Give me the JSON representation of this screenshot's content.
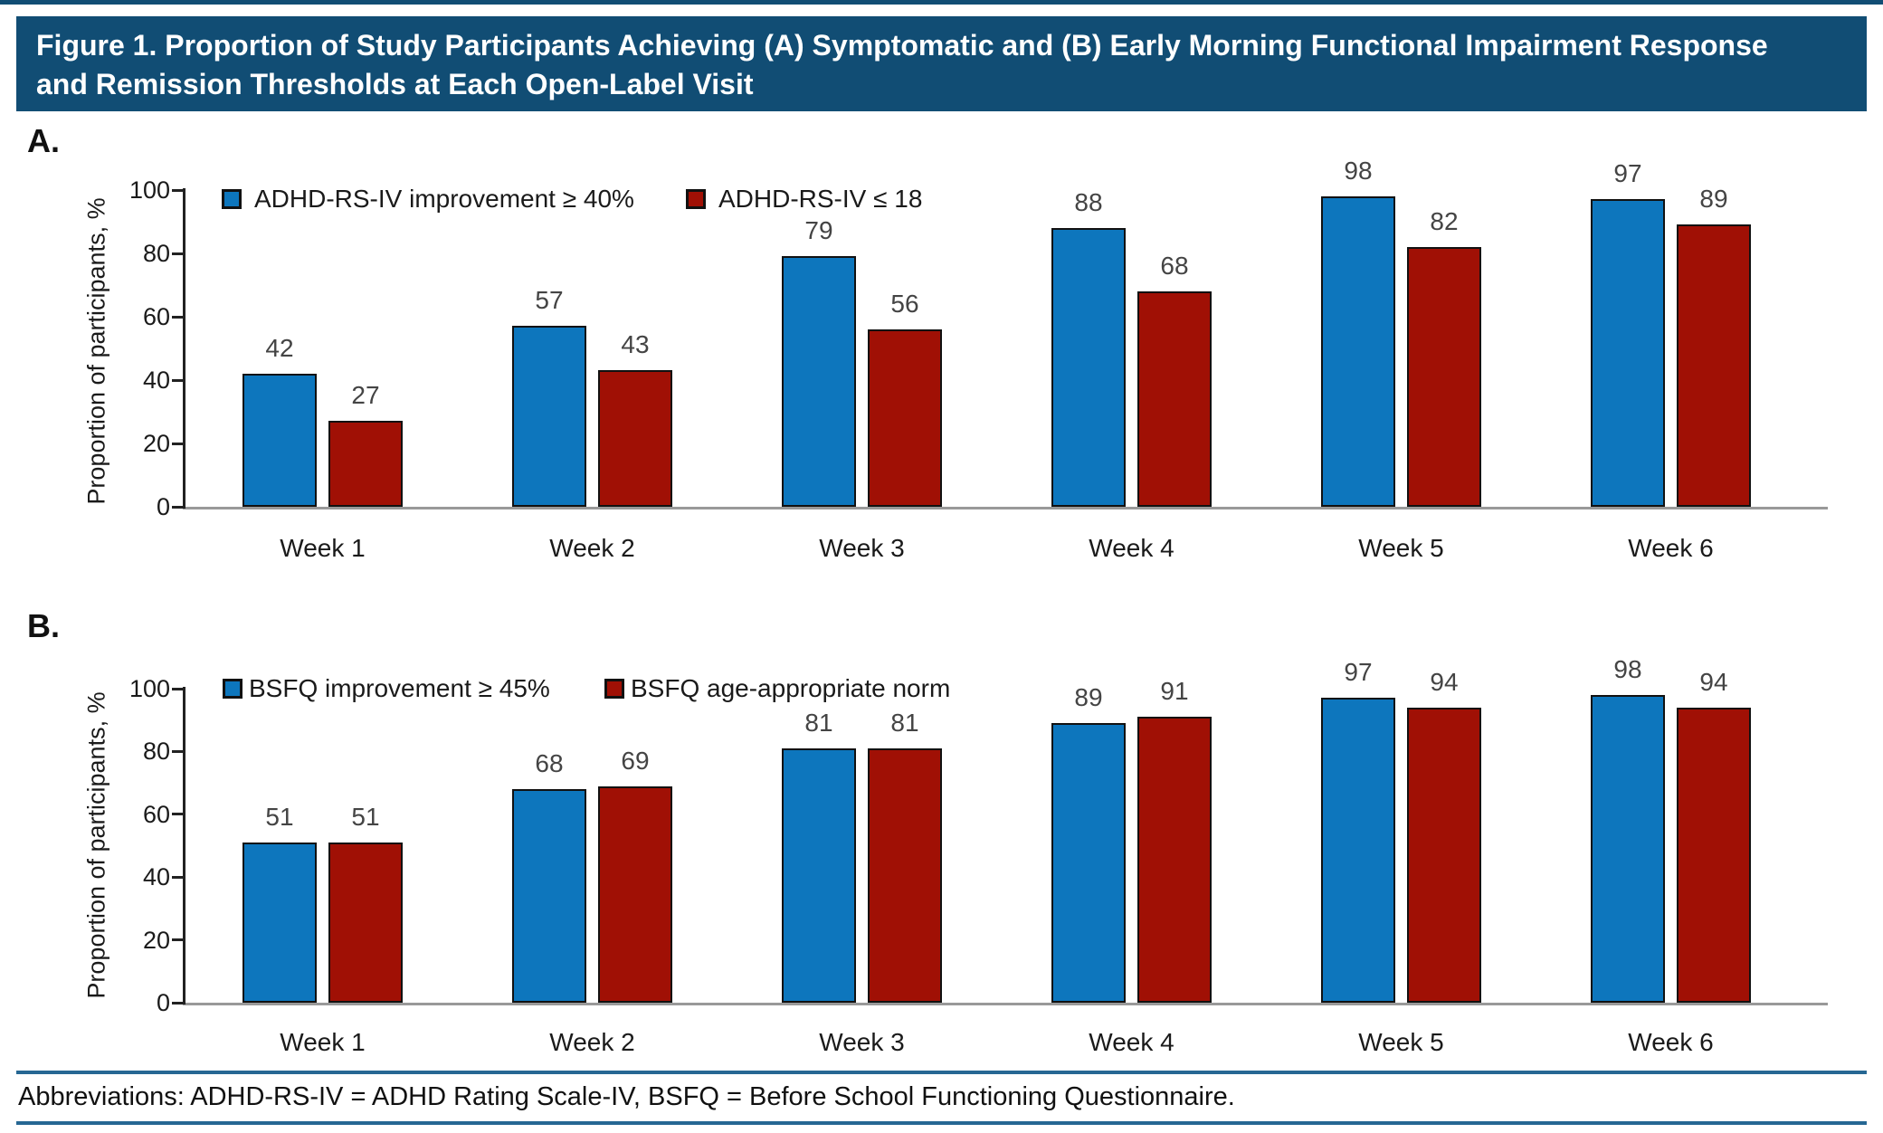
{
  "header": {
    "title_line1": "Figure 1. Proportion of Study Participants Achieving (A) Symptomatic and (B) Early Morning Functional Impairment Response",
    "title_line2": "and Remission Thresholds at Each Open-Label Visit"
  },
  "colors": {
    "header_bg": "#114d74",
    "top_rule": "#114d74",
    "footer_rule": "#266793",
    "series_blue": "#0d76bd",
    "series_red": "#a01005",
    "bar_border": "#111111",
    "value_label": "#444444"
  },
  "chart_data": [
    {
      "type": "bar",
      "panel": "A.",
      "ylabel": "Proportion of participants, %",
      "ylim": [
        0,
        100
      ],
      "yticks": [
        0,
        20,
        40,
        60,
        80,
        100
      ],
      "legend_position": "top",
      "grid": false,
      "categories": [
        "Week 1",
        "Week 2",
        "Week 3",
        "Week 4",
        "Week 5",
        "Week 6"
      ],
      "series": [
        {
          "name": "ADHD-RS-IV improvement ≥ 40%",
          "color": "#0d76bd",
          "values": [
            42,
            57,
            79,
            88,
            98,
            97
          ]
        },
        {
          "name": "ADHD-RS-IV ≤ 18",
          "color": "#a01005",
          "values": [
            27,
            43,
            56,
            68,
            82,
            89
          ]
        }
      ]
    },
    {
      "type": "bar",
      "panel": "B.",
      "ylabel": "Proportion of participants, %",
      "ylim": [
        0,
        100
      ],
      "yticks": [
        0,
        20,
        40,
        60,
        80,
        100
      ],
      "legend_position": "top",
      "grid": false,
      "categories": [
        "Week 1",
        "Week 2",
        "Week 3",
        "Week 4",
        "Week 5",
        "Week 6"
      ],
      "series": [
        {
          "name": "BSFQ improvement ≥ 45%",
          "color": "#0d76bd",
          "values": [
            51,
            68,
            81,
            89,
            97,
            98
          ]
        },
        {
          "name": "BSFQ age-appropriate norm",
          "color": "#a01005",
          "values": [
            51,
            69,
            81,
            91,
            94,
            94
          ]
        }
      ]
    }
  ],
  "footer": {
    "abbreviations": "Abbreviations: ADHD-RS-IV = ADHD Rating Scale-IV, BSFQ = Before School Functioning Questionnaire."
  }
}
